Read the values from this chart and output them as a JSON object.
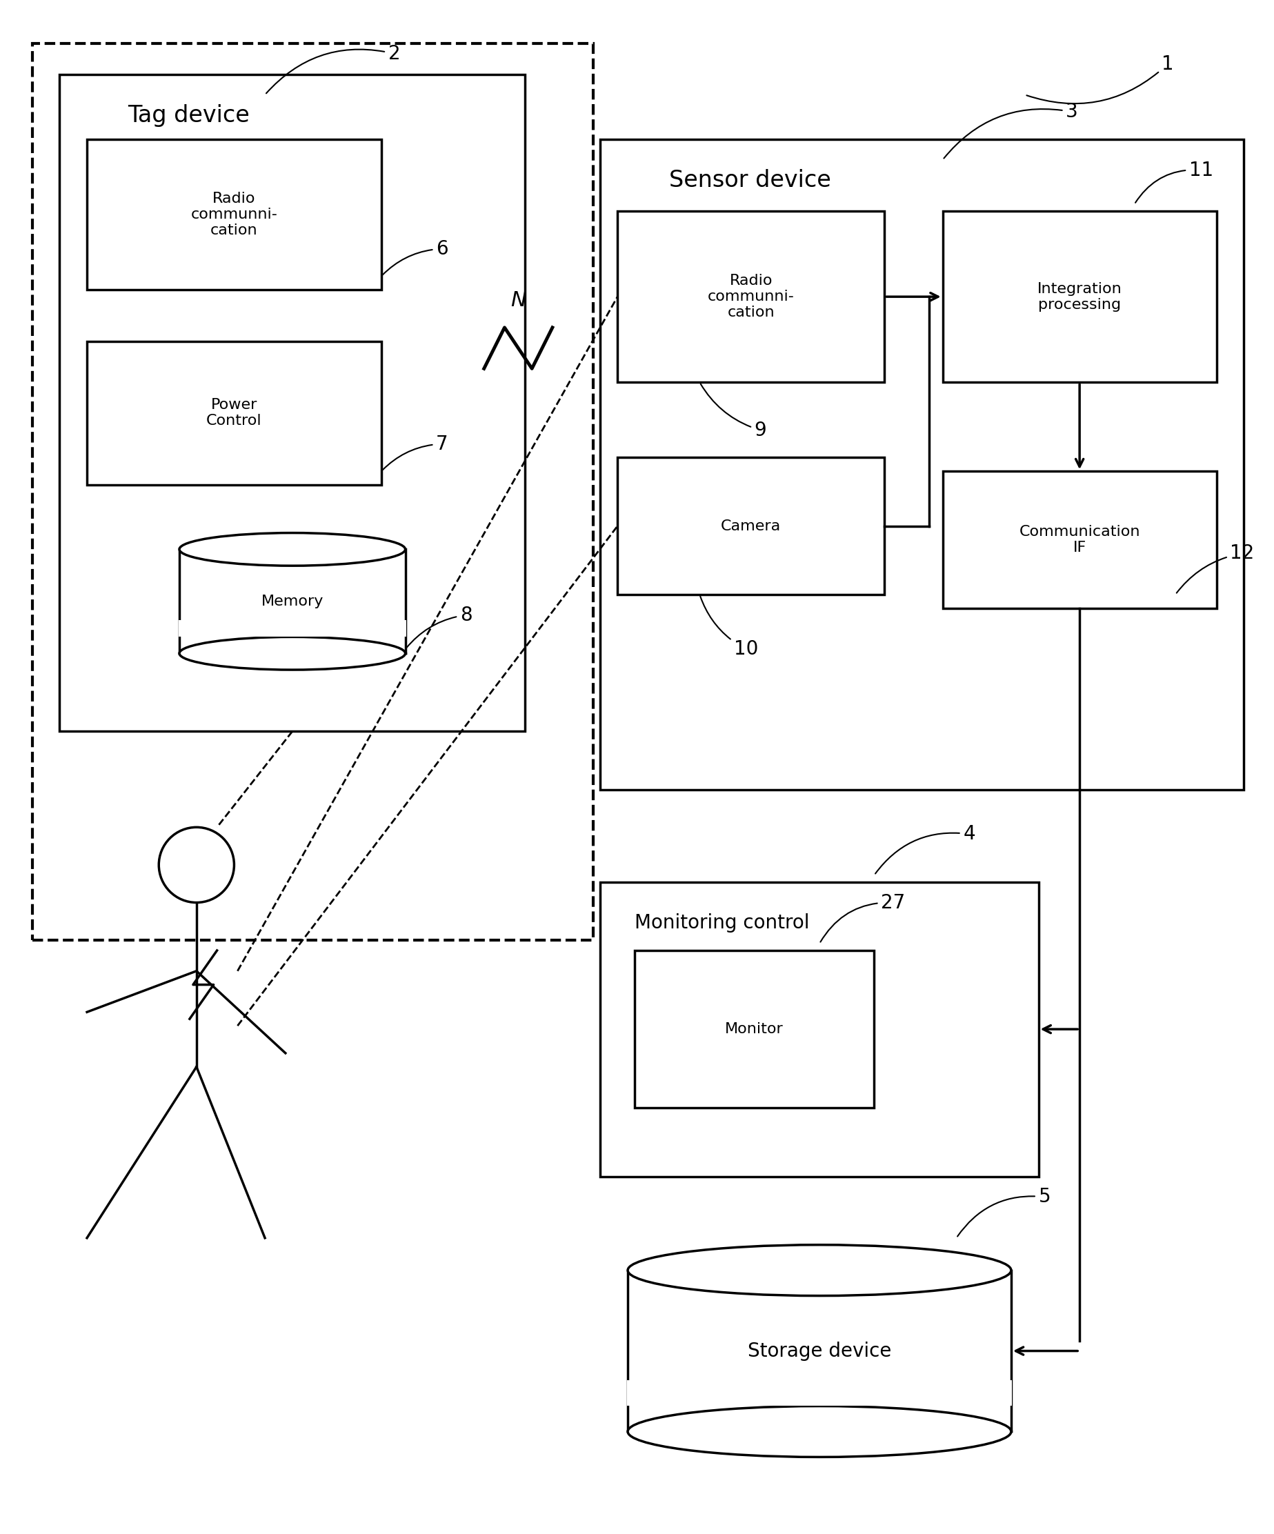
{
  "bg_color": "#ffffff",
  "line_color": "#000000",
  "fig_width": 18.47,
  "fig_height": 22.24,
  "labels": {
    "tag_device": "Tag device",
    "sensor_device": "Sensor device",
    "radio_comm_tag": "Radio\ncommunni-\ncation",
    "power_control": "Power\nControl",
    "memory": "Memory",
    "radio_comm_sensor": "Radio\ncommunni-\ncation",
    "camera": "Camera",
    "integration": "Integration\nprocessing",
    "comm_if": "Communication\nIF",
    "monitoring": "Monitoring control",
    "monitor": "Monitor",
    "storage": "Storage device"
  }
}
